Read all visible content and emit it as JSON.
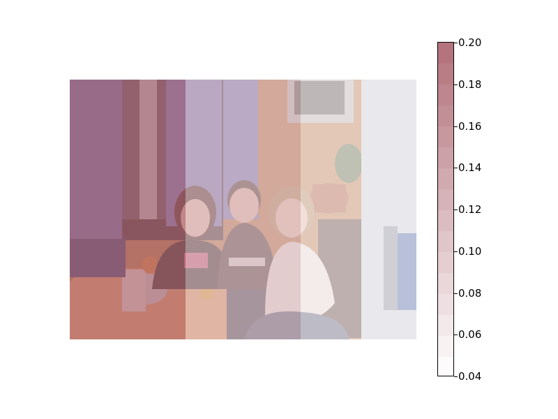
{
  "chart_data": {
    "type": "heatmap",
    "title": "",
    "xlabel": "",
    "ylabel": "",
    "background": "photo of three people seated at a dinner table in a kitchen",
    "values": [
      [
        0.2,
        0.11,
        0.06
      ]
    ],
    "colorbar": {
      "min": 0.04,
      "max": 0.2,
      "levels": [
        0.04,
        0.05,
        0.06,
        0.07,
        0.08,
        0.09,
        0.1,
        0.11,
        0.12,
        0.13,
        0.14,
        0.15,
        0.16,
        0.17,
        0.18,
        0.19,
        0.2
      ],
      "ticks": [
        "0.04",
        "0.06",
        "0.08",
        "0.10",
        "0.12",
        "0.14",
        "0.16",
        "0.18",
        "0.20"
      ],
      "colors": {
        "low": "#ffffff",
        "high": "#b2707a"
      }
    }
  }
}
